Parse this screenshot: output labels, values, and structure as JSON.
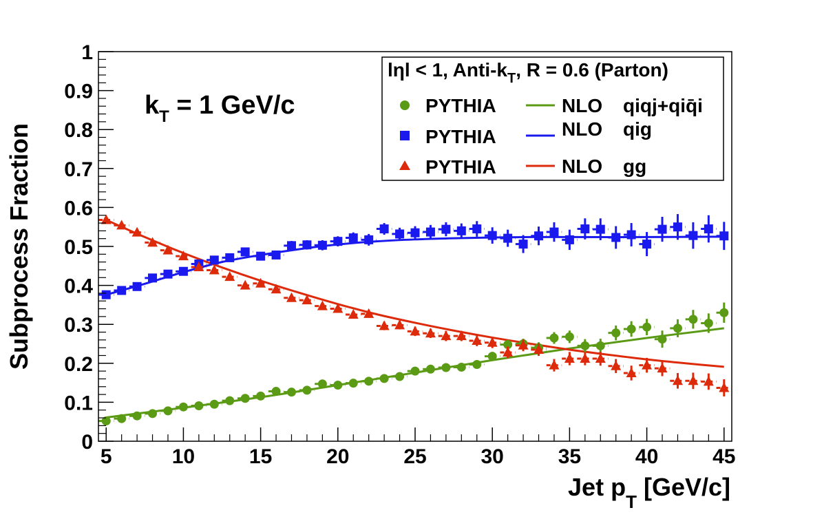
{
  "chart_data": {
    "type": "scatter",
    "xlabel": "Jet p",
    "xlabel_sub": "T",
    "xlabel_unit": "[GeV/c]",
    "ylabel": "Subprocess Fraction",
    "xlim": [
      4.5,
      45.5
    ],
    "ylim": [
      0,
      1
    ],
    "grid": false,
    "x_ticks": [
      5,
      10,
      15,
      20,
      25,
      30,
      35,
      40,
      45
    ],
    "y_ticks": [
      0,
      0.1,
      0.2,
      0.3,
      0.4,
      0.5,
      0.6,
      0.7,
      0.8,
      0.9,
      1
    ],
    "y_tick_labels": [
      "0",
      "0.1",
      "0.2",
      "0.3",
      "0.4",
      "0.5",
      "0.6",
      "0.7",
      "0.8",
      "0.9",
      "1"
    ],
    "annotation": {
      "main": "k",
      "sub": "T",
      "rest": " = 1 GeV/c"
    },
    "legend": {
      "placement": "top-right",
      "header": {
        "pre": "lηl < 1, Anti-k",
        "sub": "T",
        "post": ", R = 0.6 (Parton)"
      },
      "entries": [
        {
          "marker_label": "PYTHIA",
          "line_label": "NLO",
          "process": "qiqj+qiq̄i"
        },
        {
          "marker_label": "PYTHIA",
          "line_label": "NLO",
          "process": "qig"
        },
        {
          "marker_label": "PYTHIA",
          "line_label": "NLO",
          "process": "gg"
        }
      ]
    },
    "x": [
      5,
      6,
      7,
      8,
      9,
      10,
      11,
      12,
      13,
      14,
      15,
      16,
      17,
      18,
      19,
      20,
      21,
      22,
      23,
      24,
      25,
      26,
      27,
      28,
      29,
      30,
      31,
      32,
      33,
      34,
      35,
      36,
      37,
      38,
      39,
      40,
      41,
      42,
      43,
      44,
      45
    ],
    "series": [
      {
        "marker": "circle",
        "color": "#5a9a14",
        "values": [
          0.052,
          0.058,
          0.065,
          0.071,
          0.078,
          0.088,
          0.091,
          0.095,
          0.104,
          0.11,
          0.116,
          0.128,
          0.126,
          0.131,
          0.147,
          0.144,
          0.149,
          0.154,
          0.161,
          0.166,
          0.18,
          0.185,
          0.189,
          0.19,
          0.197,
          0.218,
          0.248,
          0.25,
          0.24,
          0.265,
          0.268,
          0.245,
          0.245,
          0.278,
          0.288,
          0.293,
          0.262,
          0.29,
          0.313,
          0.303,
          0.33
        ],
        "errors": [
          0.004,
          0.004,
          0.004,
          0.004,
          0.004,
          0.004,
          0.004,
          0.004,
          0.005,
          0.005,
          0.005,
          0.005,
          0.006,
          0.006,
          0.006,
          0.006,
          0.007,
          0.007,
          0.007,
          0.008,
          0.008,
          0.009,
          0.009,
          0.01,
          0.01,
          0.011,
          0.012,
          0.013,
          0.014,
          0.015,
          0.016,
          0.017,
          0.018,
          0.019,
          0.02,
          0.021,
          0.022,
          0.023,
          0.024,
          0.025,
          0.026
        ]
      },
      {
        "marker": "square",
        "color": "#1a1aee",
        "values": [
          0.376,
          0.387,
          0.397,
          0.419,
          0.429,
          0.436,
          0.455,
          0.465,
          0.471,
          0.486,
          0.475,
          0.478,
          0.502,
          0.504,
          0.503,
          0.513,
          0.522,
          0.517,
          0.545,
          0.532,
          0.535,
          0.537,
          0.544,
          0.54,
          0.545,
          0.528,
          0.521,
          0.506,
          0.527,
          0.537,
          0.517,
          0.545,
          0.544,
          0.523,
          0.53,
          0.506,
          0.544,
          0.55,
          0.528,
          0.545,
          0.527
        ],
        "errors": [
          0.007,
          0.007,
          0.008,
          0.008,
          0.008,
          0.009,
          0.009,
          0.009,
          0.01,
          0.01,
          0.011,
          0.011,
          0.012,
          0.012,
          0.013,
          0.013,
          0.014,
          0.015,
          0.015,
          0.016,
          0.017,
          0.018,
          0.018,
          0.019,
          0.02,
          0.021,
          0.022,
          0.023,
          0.024,
          0.025,
          0.026,
          0.027,
          0.028,
          0.029,
          0.03,
          0.031,
          0.032,
          0.033,
          0.034,
          0.035,
          0.036
        ]
      },
      {
        "marker": "triangle",
        "color": "#dd2a0a",
        "values": [
          0.568,
          0.554,
          0.536,
          0.51,
          0.49,
          0.475,
          0.447,
          0.439,
          0.422,
          0.4,
          0.405,
          0.39,
          0.368,
          0.362,
          0.347,
          0.34,
          0.325,
          0.327,
          0.296,
          0.298,
          0.282,
          0.277,
          0.27,
          0.27,
          0.258,
          0.253,
          0.228,
          0.246,
          0.235,
          0.195,
          0.212,
          0.212,
          0.212,
          0.193,
          0.175,
          0.195,
          0.187,
          0.155,
          0.155,
          0.153,
          0.137
        ],
        "errors": [
          0.005,
          0.005,
          0.005,
          0.006,
          0.006,
          0.006,
          0.006,
          0.007,
          0.007,
          0.007,
          0.008,
          0.008,
          0.008,
          0.009,
          0.009,
          0.009,
          0.01,
          0.01,
          0.011,
          0.011,
          0.012,
          0.012,
          0.013,
          0.013,
          0.014,
          0.014,
          0.015,
          0.015,
          0.016,
          0.016,
          0.017,
          0.017,
          0.018,
          0.018,
          0.019,
          0.019,
          0.02,
          0.02,
          0.021,
          0.021,
          0.022
        ]
      }
    ],
    "curves": [
      {
        "color": "#5a9a14",
        "x": [
          5,
          10,
          15,
          20,
          25,
          30,
          35,
          40,
          45
        ],
        "y": [
          0.061,
          0.086,
          0.113,
          0.144,
          0.176,
          0.208,
          0.238,
          0.265,
          0.29
        ]
      },
      {
        "color": "#1a1aee",
        "x": [
          5,
          7.5,
          10,
          12.5,
          15,
          17.5,
          20,
          22.5,
          25,
          27.5,
          30,
          32.5,
          35,
          40,
          45
        ],
        "y": [
          0.376,
          0.404,
          0.434,
          0.46,
          0.478,
          0.493,
          0.505,
          0.513,
          0.518,
          0.521,
          0.523,
          0.524,
          0.524,
          0.524,
          0.525
        ]
      },
      {
        "color": "#dd2a0a",
        "x": [
          5,
          7.5,
          10,
          12.5,
          15,
          17.5,
          20,
          22.5,
          25,
          27.5,
          30,
          32.5,
          35,
          37.5,
          40,
          42.5,
          45
        ],
        "y": [
          0.568,
          0.524,
          0.483,
          0.446,
          0.412,
          0.381,
          0.352,
          0.326,
          0.304,
          0.284,
          0.266,
          0.25,
          0.235,
          0.222,
          0.21,
          0.2,
          0.191
        ]
      }
    ]
  }
}
